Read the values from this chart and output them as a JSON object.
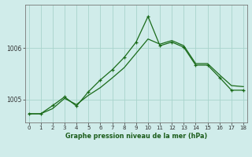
{
  "jagged_x": [
    0,
    1,
    2,
    3,
    4,
    5,
    6,
    7,
    8,
    9,
    10,
    11,
    12,
    13,
    14,
    15,
    16,
    17,
    18
  ],
  "jagged_y": [
    1004.72,
    1004.72,
    1004.88,
    1005.05,
    1004.87,
    1005.15,
    1005.38,
    1005.58,
    1005.82,
    1006.12,
    1006.62,
    1006.05,
    1006.12,
    1006.02,
    1005.67,
    1005.67,
    1005.43,
    1005.18,
    1005.18
  ],
  "smooth_x": [
    0,
    1,
    2,
    3,
    4,
    5,
    6,
    7,
    8,
    9,
    10,
    11,
    12,
    13,
    14,
    15,
    16,
    17,
    18
  ],
  "smooth_y": [
    1004.72,
    1004.72,
    1004.82,
    1005.02,
    1004.9,
    1005.08,
    1005.23,
    1005.42,
    1005.62,
    1005.9,
    1006.18,
    1006.08,
    1006.15,
    1006.05,
    1005.7,
    1005.7,
    1005.48,
    1005.27,
    1005.25
  ],
  "line_color": "#1a6b1a",
  "bg_color": "#d0ecea",
  "grid_color": "#a8d4cc",
  "xlabel": "Graphe pression niveau de la mer (hPa)",
  "yticks": [
    1005,
    1006
  ],
  "ylim": [
    1004.55,
    1006.85
  ],
  "xlim": [
    -0.3,
    18.3
  ]
}
